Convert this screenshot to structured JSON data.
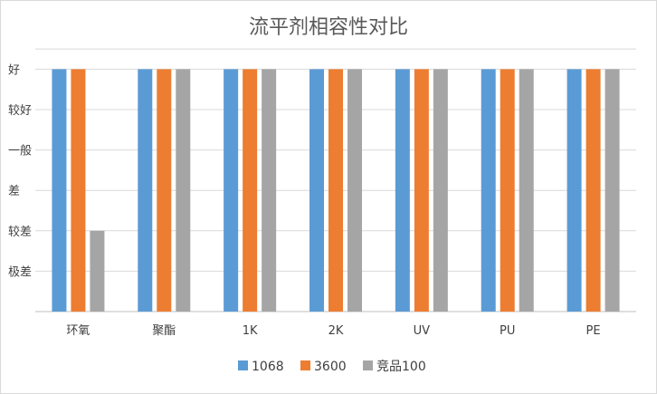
{
  "chart_data": {
    "type": "bar",
    "title": "流平剂相容性对比",
    "xlabel": "",
    "ylabel": "",
    "categories": [
      "环氧",
      "聚酯",
      "1K",
      "2K",
      "UV",
      "PU",
      "PE"
    ],
    "y_scale_labels": [
      "极差",
      "较差",
      "差",
      "一般",
      "较好",
      "好"
    ],
    "ylim": [
      0,
      6.5
    ],
    "grid": true,
    "legend_position": "bottom",
    "series": [
      {
        "name": "1068",
        "color": "#5B9BD5",
        "values": [
          6,
          6,
          6,
          6,
          6,
          6,
          6
        ]
      },
      {
        "name": "3600",
        "color": "#ED7D31",
        "values": [
          6,
          6,
          6,
          6,
          6,
          6,
          6
        ]
      },
      {
        "name": "竞品100",
        "color": "#A5A5A5",
        "values": [
          2,
          6,
          6,
          6,
          6,
          6,
          6
        ]
      }
    ]
  }
}
